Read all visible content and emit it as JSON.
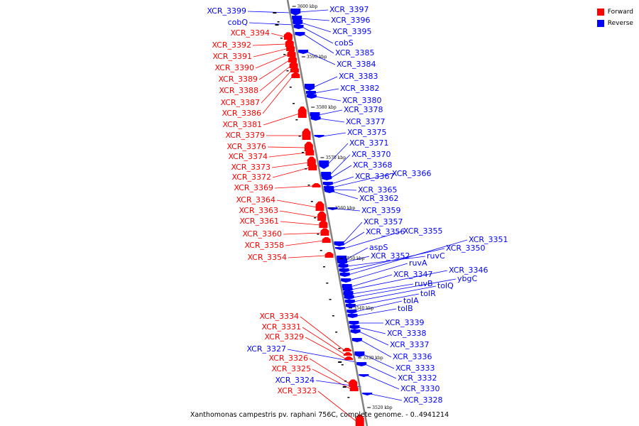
{
  "caption": "Xanthomonas campestris pv. raphani 756C, complete genome. - 0..4941214",
  "legend": [
    {
      "label": "Forward",
      "color": "#ff0000"
    },
    {
      "label": "Reverse",
      "color": "#0000ff"
    }
  ],
  "colors": {
    "forward": "#ff0000",
    "reverse": "#0000ff",
    "backbone": "#808080"
  },
  "ticks": [
    "3600 kbp",
    "3590 kbp",
    "3580 kbp",
    "3570 kbp",
    "3560 kbp",
    "3550 kbp",
    "3540 kbp",
    "3530 kbp",
    "3520 kbp"
  ],
  "forward_labels": [
    "XCR_3394",
    "XCR_3392",
    "XCR_3391",
    "XCR_3390",
    "XCR_3389",
    "XCR_3388",
    "XCR_3387",
    "XCR_3386",
    "XCR_3381",
    "XCR_3379",
    "XCR_3376",
    "XCR_3374",
    "XCR_3373",
    "XCR_3372",
    "XCR_3369",
    "XCR_3364",
    "XCR_3363",
    "XCR_3361",
    "XCR_3360",
    "XCR_3358",
    "XCR_3354",
    "XCR_3334",
    "XCR_3331",
    "XCR_3329",
    "XCR_3326",
    "XCR_3325",
    "XCR_3323"
  ],
  "reverse_left_labels": [
    "XCR_3399",
    "cobQ",
    "XCR_3327",
    "XCR_3324"
  ],
  "reverse_labels": [
    "XCR_3397",
    "XCR_3396",
    "XCR_3395",
    "cobS",
    "XCR_3385",
    "XCR_3384",
    "XCR_3383",
    "XCR_3382",
    "XCR_3380",
    "XCR_3378",
    "XCR_3377",
    "XCR_3375",
    "XCR_3371",
    "XCR_3370",
    "XCR_3368",
    "XCR_3367",
    "XCR_3366",
    "XCR_3365",
    "XCR_3362",
    "XCR_3359",
    "XCR_3357",
    "XCR_3356",
    "XCR_3355",
    "aspS",
    "XCR_3352",
    "ruvC",
    "XCR_3350",
    "XCR_3351",
    "ruvA",
    "XCR_3347",
    "XCR_3346",
    "ruvB",
    "ybgC",
    "tolQ",
    "tolR",
    "tolA",
    "tolB",
    "XCR_3339",
    "XCR_3338",
    "XCR_3337",
    "XCR_3336",
    "XCR_3333",
    "XCR_3332",
    "XCR_3330",
    "XCR_3328"
  ]
}
